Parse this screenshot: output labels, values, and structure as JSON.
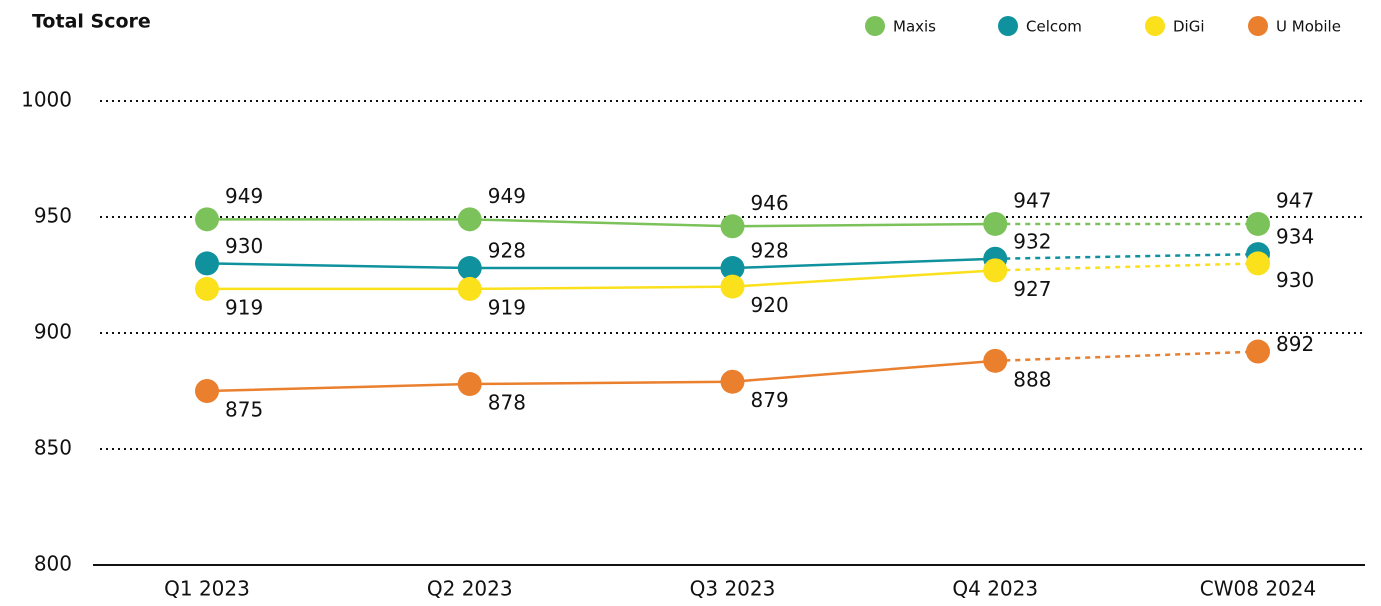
{
  "chart_data": {
    "type": "line",
    "title": "Total Score",
    "categories": [
      "Q1 2023",
      "Q2 2023",
      "Q3 2023",
      "Q4 2023",
      "CW08 2024"
    ],
    "series": [
      {
        "name": "Maxis",
        "color": "#7cc25a",
        "values": [
          949,
          949,
          946,
          947,
          947
        ]
      },
      {
        "name": "Celcom",
        "color": "#0f929e",
        "values": [
          930,
          928,
          928,
          932,
          934
        ]
      },
      {
        "name": "DiGi",
        "color": "#fbe01c",
        "values": [
          919,
          919,
          920,
          927,
          930
        ]
      },
      {
        "name": "U Mobile",
        "color": "#ea7f2e",
        "values": [
          875,
          878,
          879,
          888,
          892
        ]
      }
    ],
    "ylim": [
      800,
      1000
    ],
    "yticks": [
      800,
      850,
      900,
      950,
      1000
    ],
    "grid": true,
    "legend": "top-right"
  }
}
